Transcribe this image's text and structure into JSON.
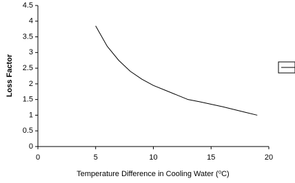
{
  "chart_data": {
    "type": "line",
    "x_label": "Temperature Difference in Cooling Water (⁰C)",
    "y_label": "Loss Factor",
    "x": [
      5,
      6,
      7,
      8,
      9,
      10,
      11,
      12,
      13,
      14,
      15,
      16,
      17,
      18,
      19
    ],
    "series": [
      {
        "color": "#000000",
        "values": [
          3.85,
          3.2,
          2.75,
          2.4,
          2.15,
          1.95,
          1.8,
          1.65,
          1.5,
          1.43,
          1.35,
          1.27,
          1.18,
          1.09,
          1.0
        ]
      }
    ],
    "xlim": [
      0,
      20
    ],
    "xticks": [
      0,
      5,
      10,
      15,
      20
    ],
    "ylim": [
      0,
      4.5
    ],
    "yticks": [
      0,
      0.5,
      1,
      1.5,
      2,
      2.5,
      3,
      3.5,
      4,
      4.5
    ],
    "grid": false
  }
}
